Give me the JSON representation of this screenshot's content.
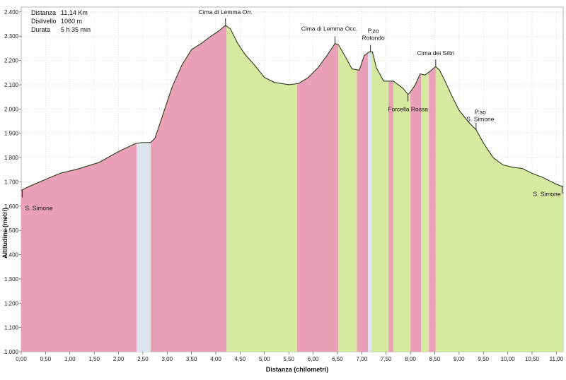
{
  "info": {
    "distanza_label": "Distanza",
    "distanza_value": "11,14 Km",
    "dislivello_label": "Dislivello",
    "dislivello_value": "1060 m",
    "durata_label": "Durata",
    "durata_value": "5 h   35 min"
  },
  "colors": {
    "climb": "#e9a0b8",
    "descent": "#d7e8a0",
    "flat": "#dde4ee",
    "line": "#2e3b1c",
    "grid": "#b5b5b5",
    "bg": "#ffffff"
  },
  "chart_data": {
    "type": "area",
    "xlabel": "Distanza (chilometri)",
    "ylabel": "Altitudine (metri)",
    "xlim": [
      0,
      11.14
    ],
    "ylim": [
      1000,
      2420
    ],
    "xticks": [
      0,
      0.5,
      1,
      1.5,
      2,
      2.5,
      3,
      3.5,
      4,
      4.5,
      5,
      5.5,
      6,
      6.5,
      7,
      7.5,
      8,
      8.5,
      9,
      9.5,
      10,
      10.5,
      11
    ],
    "xtick_labels": [
      "0,00",
      "0,50",
      "1,00",
      "1,50",
      "2,00",
      "2,50",
      "3,00",
      "3,50",
      "4,00",
      "4,50",
      "5,00",
      "5,50",
      "6,00",
      "6,50",
      "7,00",
      "7,50",
      "8,00",
      "8,50",
      "9,00",
      "9,50",
      "10,00",
      "10,50",
      "11,00"
    ],
    "yticks": [
      1000,
      1100,
      1200,
      1300,
      1400,
      1500,
      1600,
      1700,
      1800,
      1900,
      2000,
      2100,
      2200,
      2300,
      2400
    ],
    "ytick_labels": [
      "1.000",
      "1.100",
      "1.200",
      "1.300",
      "1.400",
      "1.500",
      "1.600",
      "1.700",
      "1.800",
      "1.900",
      "2.000",
      "2.100",
      "2.200",
      "2.300",
      "2.400"
    ],
    "grid": true,
    "profile": {
      "x": [
        0,
        0.15,
        0.5,
        0.8,
        1.2,
        1.6,
        2.0,
        2.35,
        2.5,
        2.66,
        2.75,
        2.9,
        3.1,
        3.3,
        3.5,
        3.7,
        3.9,
        4.05,
        4.2,
        4.3,
        4.45,
        4.6,
        4.8,
        5.0,
        5.2,
        5.5,
        5.7,
        5.9,
        6.1,
        6.3,
        6.45,
        6.52,
        6.65,
        6.8,
        6.95,
        7.05,
        7.15,
        7.22,
        7.3,
        7.45,
        7.55,
        7.65,
        7.75,
        7.85,
        7.95,
        8.0,
        8.1,
        8.2,
        8.3,
        8.4,
        8.52,
        8.6,
        8.7,
        8.85,
        9.0,
        9.2,
        9.35,
        9.5,
        9.7,
        9.9,
        10.1,
        10.3,
        10.5,
        10.7,
        10.9,
        11.0,
        11.14
      ],
      "y": [
        1665,
        1680,
        1710,
        1735,
        1755,
        1780,
        1825,
        1858,
        1862,
        1862,
        1880,
        1970,
        2090,
        2180,
        2245,
        2270,
        2300,
        2320,
        2345,
        2330,
        2270,
        2225,
        2180,
        2130,
        2110,
        2100,
        2105,
        2130,
        2170,
        2225,
        2270,
        2265,
        2220,
        2165,
        2160,
        2220,
        2235,
        2235,
        2170,
        2115,
        2115,
        2115,
        2100,
        2085,
        2060,
        2070,
        2100,
        2145,
        2140,
        2155,
        2175,
        2160,
        2120,
        2055,
        1995,
        1945,
        1915,
        1860,
        1800,
        1770,
        1760,
        1755,
        1735,
        1720,
        1700,
        1690,
        1680
      ]
    },
    "segments": [
      {
        "type": "climb",
        "x0": 0,
        "x1": 2.37
      },
      {
        "type": "flat",
        "x0": 2.37,
        "x1": 2.66
      },
      {
        "type": "climb",
        "x0": 2.66,
        "x1": 4.22
      },
      {
        "type": "descent",
        "x0": 4.22,
        "x1": 5.67
      },
      {
        "type": "climb",
        "x0": 5.67,
        "x1": 6.52
      },
      {
        "type": "descent",
        "x0": 6.52,
        "x1": 6.9
      },
      {
        "type": "climb",
        "x0": 6.9,
        "x1": 7.13
      },
      {
        "type": "flat",
        "x0": 7.13,
        "x1": 7.2
      },
      {
        "type": "descent",
        "x0": 7.2,
        "x1": 7.55
      },
      {
        "type": "climb",
        "x0": 7.55,
        "x1": 7.65
      },
      {
        "type": "descent",
        "x0": 7.65,
        "x1": 8.0
      },
      {
        "type": "climb",
        "x0": 8.0,
        "x1": 8.22
      },
      {
        "type": "descent",
        "x0": 8.22,
        "x1": 8.38
      },
      {
        "type": "climb",
        "x0": 8.38,
        "x1": 8.52
      },
      {
        "type": "descent",
        "x0": 8.52,
        "x1": 11.14
      }
    ],
    "annotations": [
      {
        "text": "S. Simone",
        "x": 0.02,
        "y": 1665
      },
      {
        "text": "Cima di Lemma Orr.",
        "x": 4.2,
        "y": 2345
      },
      {
        "text": "Cima di Lemma Occ.",
        "x": 6.45,
        "y": 2270
      },
      {
        "text": "P.zo\nRotondo",
        "x": 7.18,
        "y": 2235
      },
      {
        "text": "Forcella Rossa",
        "x": 7.95,
        "y": 2060
      },
      {
        "text": "Cima dei Siltri",
        "x": 8.52,
        "y": 2175
      },
      {
        "text": "P.so\nS. Simone",
        "x": 9.35,
        "y": 1915
      },
      {
        "text": "S. Simone",
        "x": 11.12,
        "y": 1680
      }
    ]
  }
}
